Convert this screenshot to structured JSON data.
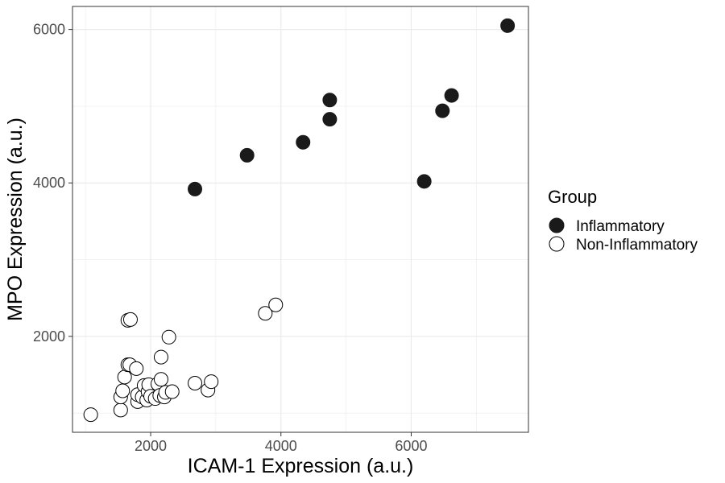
{
  "chart_data": {
    "type": "scatter",
    "title": "",
    "xlabel": "ICAM-1 Expression (a.u.)",
    "ylabel": "MPO Expression (a.u.)",
    "xlim": [
      800,
      7800
    ],
    "ylim": [
      750,
      6300
    ],
    "xticks": [
      2000,
      4000,
      6000
    ],
    "yticks": [
      2000,
      4000,
      6000
    ],
    "xticks_minor": [
      1000,
      3000,
      5000,
      7000
    ],
    "yticks_minor": [
      1000,
      3000,
      5000
    ],
    "grid": true,
    "legend": {
      "title": "Group",
      "position": "right",
      "entries": [
        "Inflammatory",
        "Non-Inflammatory"
      ]
    },
    "colors": {
      "inflammatory": "#1a1a1a",
      "non_inflammatory": "#ffffff",
      "grid": "#ebebeb",
      "stroke": "#000000"
    },
    "series": [
      {
        "name": "Inflammatory",
        "filled": true,
        "points": [
          [
            2680,
            3920
          ],
          [
            3480,
            4360
          ],
          [
            4340,
            4530
          ],
          [
            4750,
            4830
          ],
          [
            4750,
            5080
          ],
          [
            6200,
            4020
          ],
          [
            6480,
            4940
          ],
          [
            6620,
            5140
          ],
          [
            7480,
            6050
          ]
        ]
      },
      {
        "name": "Non-Inflammatory",
        "filled": false,
        "points": [
          [
            1080,
            980
          ],
          [
            1540,
            1040
          ],
          [
            1540,
            1210
          ],
          [
            1570,
            1290
          ],
          [
            1600,
            1470
          ],
          [
            1650,
            1630
          ],
          [
            1680,
            1630
          ],
          [
            1650,
            2210
          ],
          [
            1690,
            2220
          ],
          [
            1780,
            1580
          ],
          [
            1800,
            1150
          ],
          [
            1800,
            1240
          ],
          [
            1870,
            1210
          ],
          [
            1900,
            1360
          ],
          [
            1940,
            1170
          ],
          [
            1960,
            1280
          ],
          [
            1970,
            1370
          ],
          [
            2000,
            1220
          ],
          [
            2070,
            1190
          ],
          [
            2110,
            1380
          ],
          [
            2140,
            1230
          ],
          [
            2160,
            1440
          ],
          [
            2160,
            1730
          ],
          [
            2210,
            1210
          ],
          [
            2230,
            1270
          ],
          [
            2280,
            1990
          ],
          [
            2330,
            1280
          ],
          [
            2680,
            1390
          ],
          [
            2880,
            1300
          ],
          [
            2930,
            1410
          ],
          [
            3760,
            2300
          ],
          [
            3920,
            2410
          ]
        ]
      }
    ]
  }
}
